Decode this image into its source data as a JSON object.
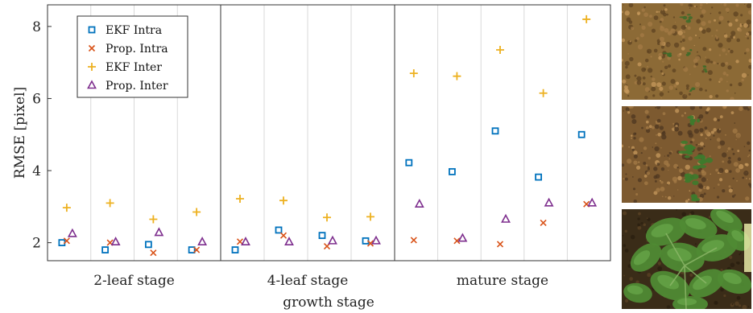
{
  "chart_data": {
    "type": "scatter",
    "xlabel": "growth stage",
    "ylabel": "RMSE [pixel]",
    "ylim": [
      1.5,
      8.6
    ],
    "yticks": [
      2,
      4,
      6,
      8
    ],
    "grid": "vertical lines between sequences",
    "legend_position": "top-left",
    "groups": [
      {
        "label": "2-leaf stage",
        "sequences": 4
      },
      {
        "label": "4-leaf stage",
        "sequences": 4
      },
      {
        "label": "mature stage",
        "sequences": 5
      }
    ],
    "series": [
      {
        "name": "EKF Intra",
        "marker": "square",
        "color": "#0072BD",
        "values": [
          2.0,
          1.8,
          1.95,
          1.8,
          1.8,
          2.35,
          2.2,
          2.05,
          4.22,
          3.97,
          5.1,
          3.82,
          5.0
        ]
      },
      {
        "name": "Prop. Intra",
        "marker": "x",
        "color": "#D95319",
        "values": [
          2.05,
          2.0,
          1.72,
          1.8,
          2.03,
          2.2,
          1.9,
          1.98,
          2.07,
          2.05,
          1.96,
          2.55,
          3.07
        ]
      },
      {
        "name": "EKF Inter",
        "marker": "plus",
        "color": "#EDB120",
        "values": [
          2.97,
          3.1,
          2.65,
          2.85,
          3.22,
          3.17,
          2.7,
          2.72,
          6.7,
          6.62,
          7.35,
          6.15,
          8.2
        ]
      },
      {
        "name": "Prop. Inter",
        "marker": "triangle",
        "color": "#7E2F8E",
        "values": [
          2.25,
          2.02,
          2.28,
          2.02,
          2.02,
          2.02,
          2.05,
          2.05,
          3.07,
          2.12,
          2.65,
          3.1,
          3.1
        ]
      }
    ]
  },
  "photos": [
    {
      "name": "soil-photo-early",
      "palette": "early-soil"
    },
    {
      "name": "soil-photo-mid",
      "palette": "mid-soil"
    },
    {
      "name": "plant-photo-mature",
      "palette": "mature-plant"
    }
  ]
}
